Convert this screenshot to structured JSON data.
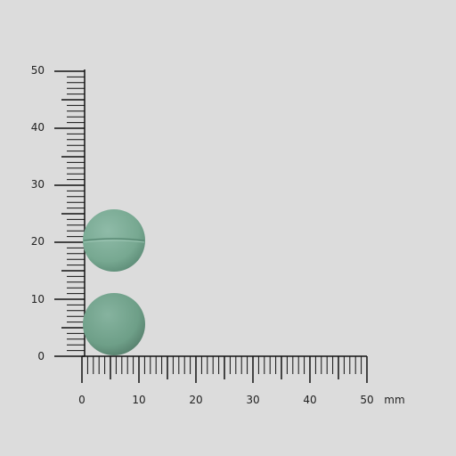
{
  "background": "#dcdcdc",
  "ruler": {
    "unit_label": "mm",
    "x_tick_labels": [
      "0",
      "10",
      "20",
      "30",
      "40",
      "50"
    ],
    "y_tick_labels": [
      "0",
      "10",
      "20",
      "30",
      "40",
      "50"
    ],
    "color": "#111111"
  },
  "tablets": [
    {
      "name": "upper-tablet",
      "scored": true,
      "color": "#7aa995"
    },
    {
      "name": "lower-tablet",
      "scored": false,
      "color": "#6f9f89"
    }
  ]
}
